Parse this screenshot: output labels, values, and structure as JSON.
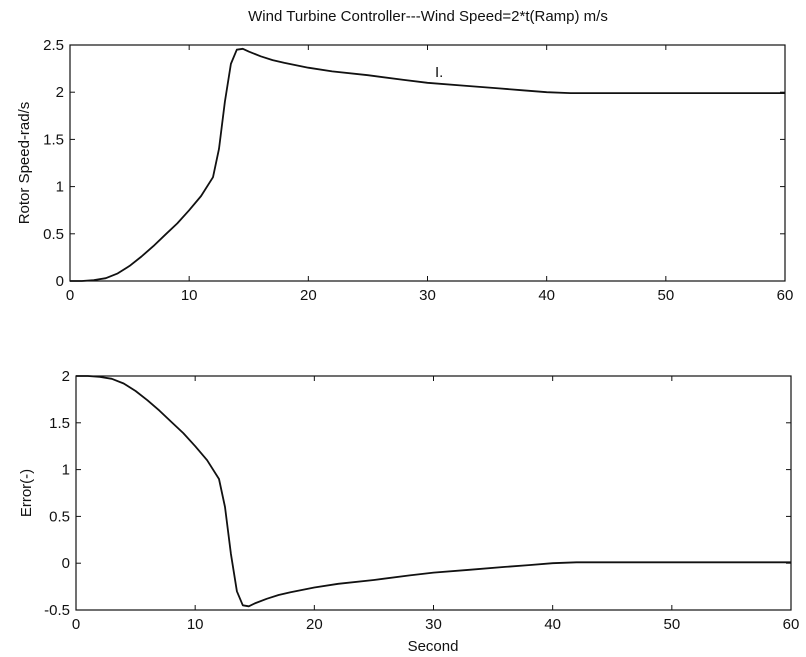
{
  "chart_data": [
    {
      "type": "line",
      "title": "Wind Turbine Controller---Wind Speed=2*t(Ramp) m/s",
      "xlabel": "",
      "ylabel": "Rotor Speed-rad/s",
      "xlim": [
        0,
        60
      ],
      "ylim": [
        0,
        2.5
      ],
      "xticks": [
        "0",
        "10",
        "20",
        "30",
        "40",
        "50",
        "60"
      ],
      "yticks": [
        "0",
        "0.5",
        "1",
        "1.5",
        "2",
        "2.5"
      ],
      "grid": false,
      "annotation": "I.",
      "series": [
        {
          "x": [
            0,
            1,
            2,
            3,
            4,
            5,
            6,
            7,
            8,
            9,
            10,
            11,
            12,
            12.5,
            13,
            13.5,
            14,
            14.5,
            15,
            16,
            17,
            18,
            20,
            22,
            25,
            28,
            30,
            33,
            36,
            38,
            40,
            42,
            45,
            50,
            55,
            60
          ],
          "y": [
            0,
            0,
            0.01,
            0.03,
            0.08,
            0.16,
            0.26,
            0.37,
            0.49,
            0.61,
            0.75,
            0.9,
            1.1,
            1.4,
            1.9,
            2.3,
            2.45,
            2.46,
            2.43,
            2.38,
            2.34,
            2.31,
            2.26,
            2.22,
            2.18,
            2.13,
            2.1,
            2.07,
            2.04,
            2.02,
            2.0,
            1.99,
            1.99,
            1.99,
            1.99,
            1.99
          ]
        }
      ]
    },
    {
      "type": "line",
      "title": "",
      "xlabel": "Second",
      "ylabel": "Error(-)",
      "xlim": [
        0,
        60
      ],
      "ylim": [
        -0.5,
        2
      ],
      "xticks": [
        "0",
        "10",
        "20",
        "30",
        "40",
        "50",
        "60"
      ],
      "yticks": [
        "-0.5",
        "0",
        "0.5",
        "1",
        "1.5",
        "2"
      ],
      "grid": false,
      "series": [
        {
          "x": [
            0,
            1,
            2,
            3,
            4,
            5,
            6,
            7,
            8,
            9,
            10,
            11,
            12,
            12.5,
            13,
            13.5,
            14,
            14.5,
            15,
            16,
            17,
            18,
            20,
            22,
            25,
            28,
            30,
            33,
            36,
            38,
            40,
            42,
            45,
            50,
            55,
            60
          ],
          "y": [
            2,
            2,
            1.99,
            1.97,
            1.92,
            1.84,
            1.74,
            1.63,
            1.51,
            1.39,
            1.25,
            1.1,
            0.9,
            0.6,
            0.1,
            -0.3,
            -0.45,
            -0.46,
            -0.43,
            -0.38,
            -0.34,
            -0.31,
            -0.26,
            -0.22,
            -0.18,
            -0.13,
            -0.1,
            -0.07,
            -0.04,
            -0.02,
            0.0,
            0.01,
            0.01,
            0.01,
            0.01,
            0.01
          ]
        }
      ]
    }
  ]
}
